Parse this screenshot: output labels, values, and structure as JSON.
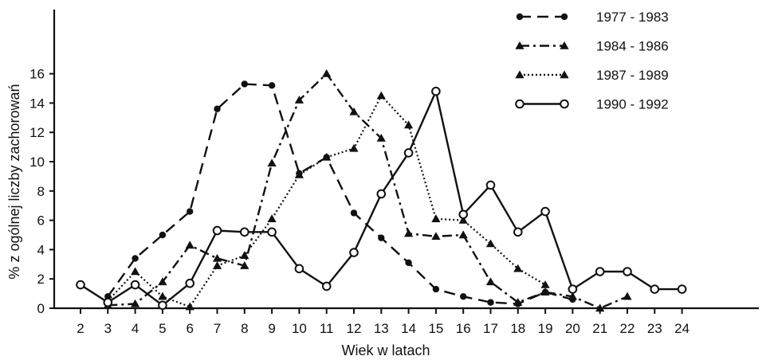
{
  "chart_data": {
    "type": "line",
    "xlabel": "Wiek w latach",
    "ylabel": "% z ogólnej liczby zachorowań",
    "xlim": [
      2,
      24
    ],
    "ylim": [
      0,
      16
    ],
    "x_ticks": [
      "2",
      "3",
      "4",
      "5",
      "6",
      "7",
      "8",
      "9",
      "10",
      "11",
      "12",
      "13",
      "14",
      "15",
      "16",
      "17",
      "18",
      "19",
      "20",
      "21",
      "22",
      "23",
      "24"
    ],
    "y_ticks": [
      "0",
      "2",
      "4",
      "6",
      "8",
      "10",
      "12",
      "14",
      "16"
    ],
    "grid": false,
    "legend_position": "top-right",
    "series": [
      {
        "name": "1977 - 1983",
        "line_style": "dashed",
        "marker": "filled-circle",
        "points": [
          [
            3,
            0.8
          ],
          [
            4,
            3.4
          ],
          [
            5,
            5.0
          ],
          [
            6,
            6.6
          ],
          [
            7,
            13.6
          ],
          [
            8,
            15.3
          ],
          [
            9,
            15.2
          ],
          [
            10,
            9.2
          ],
          [
            11,
            10.3
          ],
          [
            12,
            6.5
          ],
          [
            13,
            4.8
          ],
          [
            14,
            3.1
          ],
          [
            15,
            1.3
          ],
          [
            16,
            0.8
          ],
          [
            17,
            0.4
          ],
          [
            18,
            0.3
          ],
          [
            19,
            1.1
          ],
          [
            20,
            0.6
          ]
        ]
      },
      {
        "name": "1984 - 1986",
        "line_style": "dash-dot",
        "marker": "filled-triangle",
        "points": [
          [
            3,
            0.2
          ],
          [
            4,
            0.3
          ],
          [
            5,
            1.8
          ],
          [
            6,
            4.3
          ],
          [
            7,
            3.4
          ],
          [
            8,
            2.9
          ],
          [
            9,
            9.9
          ],
          [
            10,
            14.2
          ],
          [
            11,
            16.0
          ],
          [
            12,
            13.4
          ],
          [
            13,
            11.6
          ],
          [
            14,
            5.1
          ],
          [
            15,
            4.9
          ],
          [
            16,
            5.0
          ],
          [
            17,
            1.8
          ],
          [
            18,
            0.4
          ],
          [
            19,
            1.1
          ],
          [
            20,
            0.8
          ],
          [
            21,
            0.0
          ],
          [
            22,
            0.8
          ]
        ]
      },
      {
        "name": "1987 - 1989",
        "line_style": "dotted",
        "marker": "filled-triangle",
        "points": [
          [
            3,
            0.5
          ],
          [
            4,
            2.5
          ],
          [
            5,
            0.8
          ],
          [
            6,
            0.1
          ],
          [
            7,
            2.9
          ],
          [
            8,
            3.6
          ],
          [
            9,
            6.1
          ],
          [
            10,
            9.1
          ],
          [
            11,
            10.3
          ],
          [
            12,
            10.9
          ],
          [
            13,
            14.5
          ],
          [
            14,
            12.5
          ],
          [
            15,
            6.1
          ],
          [
            16,
            6.0
          ],
          [
            17,
            4.4
          ],
          [
            18,
            2.7
          ],
          [
            19,
            1.6
          ]
        ]
      },
      {
        "name": "1990 - 1992",
        "line_style": "solid",
        "marker": "open-circle",
        "points": [
          [
            2,
            1.6
          ],
          [
            3,
            0.4
          ],
          [
            4,
            1.6
          ],
          [
            5,
            0.2
          ],
          [
            6,
            1.7
          ],
          [
            7,
            5.3
          ],
          [
            8,
            5.2
          ],
          [
            9,
            5.2
          ],
          [
            10,
            2.7
          ],
          [
            11,
            1.5
          ],
          [
            12,
            3.8
          ],
          [
            13,
            7.8
          ],
          [
            14,
            10.6
          ],
          [
            15,
            14.8
          ],
          [
            16,
            6.4
          ],
          [
            17,
            8.4
          ],
          [
            18,
            5.2
          ],
          [
            19,
            6.6
          ],
          [
            20,
            1.3
          ],
          [
            21,
            2.5
          ],
          [
            22,
            2.5
          ],
          [
            23,
            1.3
          ],
          [
            24,
            1.3
          ]
        ]
      }
    ]
  }
}
